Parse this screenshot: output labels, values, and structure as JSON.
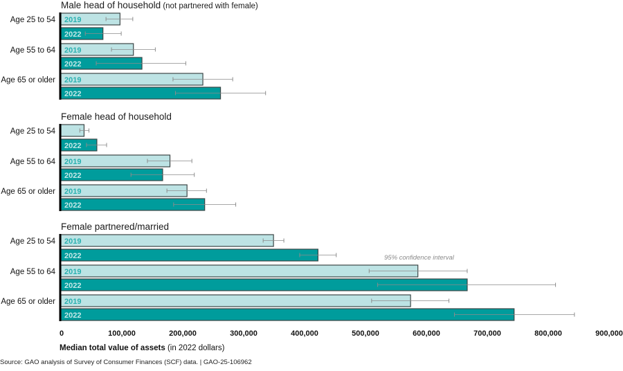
{
  "chart_data": {
    "type": "bar",
    "orientation": "horizontal",
    "xlabel_bold": "Median total value of assets",
    "xlabel_rest": "(in 2022 dollars)",
    "xlim": [
      0,
      900000
    ],
    "x_ticks": [
      0,
      100000,
      200000,
      300000,
      400000,
      500000,
      600000,
      700000,
      800000,
      900000
    ],
    "x_tick_labels": [
      "0",
      "100,000",
      "200,000",
      "300,000",
      "400,000",
      "500,000",
      "600,000",
      "700,000",
      "800,000",
      "900,000"
    ],
    "legend": {
      "series": [
        {
          "name": "2019",
          "color": "#bde3e4",
          "label_color": "#29b0b0"
        },
        {
          "name": "2022",
          "color": "#009c9c",
          "label_color": "#c4e8e8"
        }
      ],
      "placement": "inline-bar-labels"
    },
    "annotation": "95% confidence interval",
    "panels": [
      {
        "title": "Male head of household",
        "subtitle": "(not partnered with female)",
        "groups": [
          {
            "label": "Age 25 to 54",
            "bars": [
              {
                "year": "2019",
                "value": 97000,
                "ci": [
                  74000,
                  118000
                ]
              },
              {
                "year": "2022",
                "value": 69000,
                "ci": [
                  40000,
                  99000
                ]
              }
            ]
          },
          {
            "label": "Age 55 to 64",
            "bars": [
              {
                "year": "2019",
                "value": 119000,
                "ci": [
                  83000,
                  155000
                ]
              },
              {
                "year": "2022",
                "value": 133000,
                "ci": [
                  58000,
                  205000
                ]
              }
            ]
          },
          {
            "label": "Age 65 or older",
            "bars": [
              {
                "year": "2019",
                "value": 233000,
                "ci": [
                  184000,
                  282000
                ]
              },
              {
                "year": "2022",
                "value": 262000,
                "ci": [
                  188000,
                  336000
                ]
              }
            ]
          }
        ]
      },
      {
        "title": "Female head of household",
        "subtitle": "",
        "groups": [
          {
            "label": "Age 25 to 54",
            "bars": [
              {
                "year": "2019",
                "value": 38000,
                "ci": [
                  31000,
                  46000
                ],
                "hide_label": true
              },
              {
                "year": "2022",
                "value": 59000,
                "ci": [
                  42000,
                  75000
                ]
              }
            ]
          },
          {
            "label": "Age 55 to 64",
            "bars": [
              {
                "year": "2019",
                "value": 179000,
                "ci": [
                  142000,
                  215000
                ]
              },
              {
                "year": "2022",
                "value": 167000,
                "ci": [
                  115000,
                  219000
                ]
              }
            ]
          },
          {
            "label": "Age 65 or older",
            "bars": [
              {
                "year": "2019",
                "value": 207000,
                "ci": [
                  174000,
                  239000
                ]
              },
              {
                "year": "2022",
                "value": 236000,
                "ci": [
                  185000,
                  287000
                ]
              }
            ]
          }
        ]
      },
      {
        "title": "Female partnered/married",
        "subtitle": "",
        "groups": [
          {
            "label": "Age 25 to 54",
            "bars": [
              {
                "year": "2019",
                "value": 349000,
                "ci": [
                  332000,
                  366000
                ]
              },
              {
                "year": "2022",
                "value": 422000,
                "ci": [
                  392000,
                  452000
                ]
              }
            ]
          },
          {
            "label": "Age 55 to 64",
            "bars": [
              {
                "year": "2019",
                "value": 586000,
                "ci": [
                  506000,
                  667000
                ]
              },
              {
                "year": "2022",
                "value": 667000,
                "ci": [
                  520000,
                  812000
                ]
              }
            ]
          },
          {
            "label": "Age 65 or older",
            "bars": [
              {
                "year": "2019",
                "value": 574000,
                "ci": [
                  510000,
                  637000
                ]
              },
              {
                "year": "2022",
                "value": 744000,
                "ci": [
                  646000,
                  843000
                ]
              }
            ]
          }
        ]
      }
    ]
  },
  "footer": {
    "source": "Source: GAO analysis of Survey of Consumer Finances (SCF) data.  |  GAO-25-106962"
  }
}
